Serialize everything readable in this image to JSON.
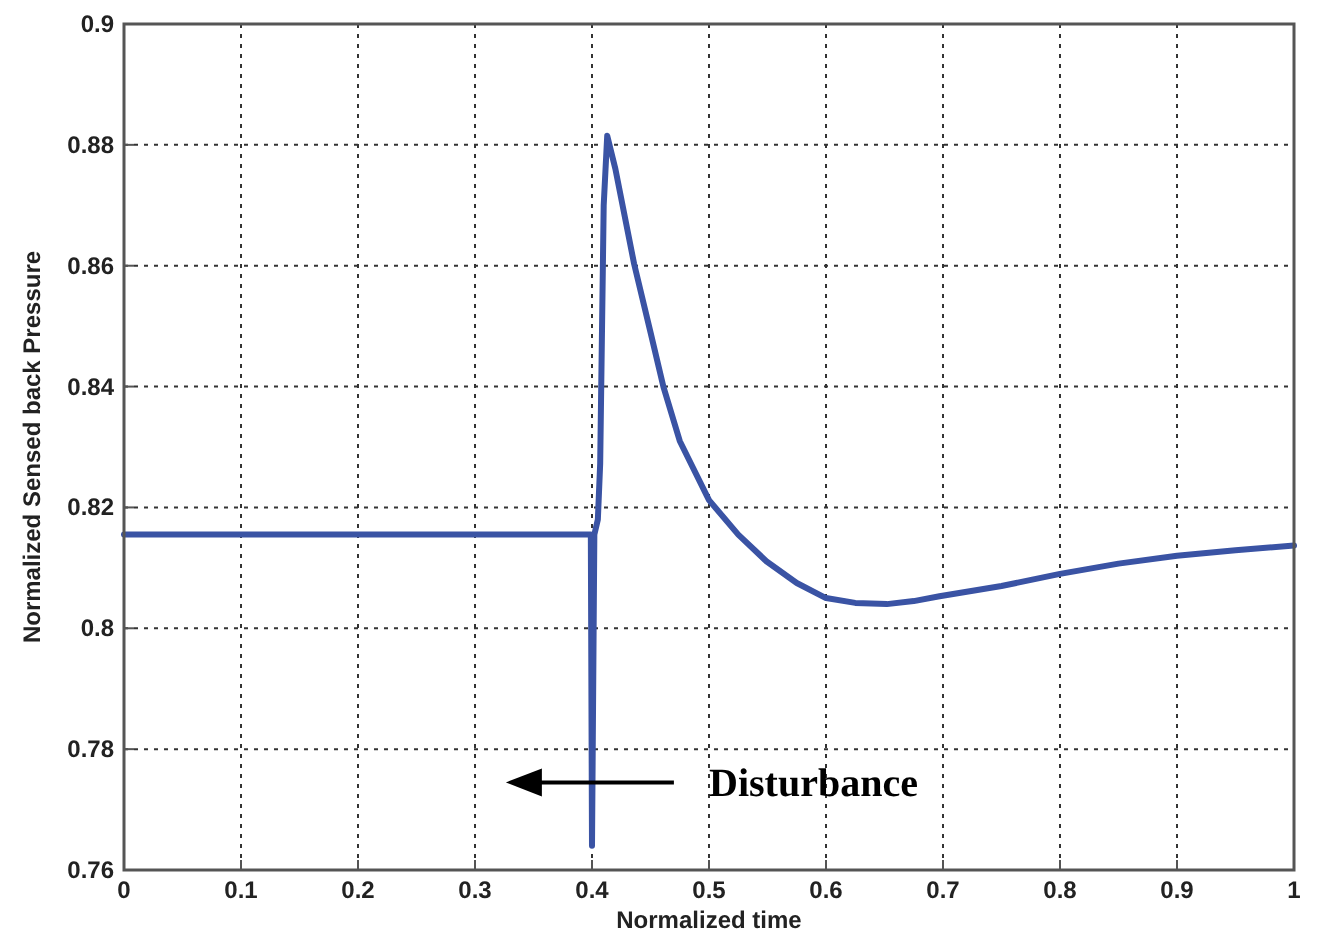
{
  "chart_data": {
    "type": "line",
    "xlabel": "Normalized time",
    "ylabel": "Normalized Sensed back Pressure",
    "annotations": [
      "Disturbance"
    ],
    "xlim": [
      0,
      1
    ],
    "ylim": [
      0.76,
      0.9
    ],
    "xticks": [
      0,
      0.1,
      0.2,
      0.3,
      0.4,
      0.5,
      0.6,
      0.7,
      0.8,
      0.9,
      1
    ],
    "yticks": [
      0.76,
      0.78,
      0.8,
      0.82,
      0.84,
      0.86,
      0.88,
      0.9
    ],
    "grid": true,
    "series": [
      {
        "color": "#3a53a4",
        "x": [
          0,
          0.2,
          0.399,
          0.4,
          0.402,
          0.405,
          0.407,
          0.41,
          0.413,
          0.42,
          0.436,
          0.45,
          0.461,
          0.475,
          0.5,
          0.525,
          0.549,
          0.575,
          0.6,
          0.625,
          0.652,
          0.675,
          0.697,
          0.75,
          0.8,
          0.85,
          0.9,
          0.95,
          1
        ],
        "values": [
          0.8155,
          0.8155,
          0.8155,
          0.764,
          0.8155,
          0.818,
          0.8273,
          0.87,
          0.8815,
          0.876,
          0.8603,
          0.849,
          0.84,
          0.831,
          0.8212,
          0.8155,
          0.8111,
          0.8075,
          0.805,
          0.8042,
          0.804,
          0.8045,
          0.8053,
          0.807,
          0.809,
          0.8107,
          0.812,
          0.8129,
          0.8137
        ]
      }
    ]
  }
}
